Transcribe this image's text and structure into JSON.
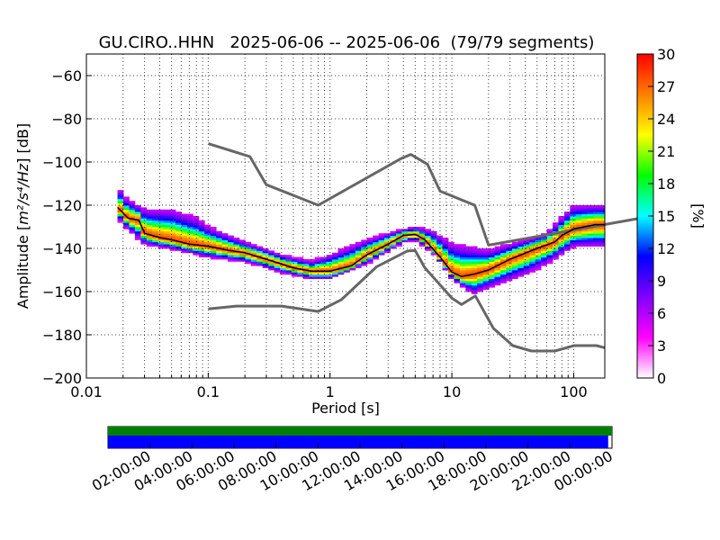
{
  "chart_data": [
    {
      "type": "heatmap",
      "title": "GU.CIRO..HHN   2025-06-06 -- 2025-06-06  (79/79 segments)",
      "xlabel": "Period [s]",
      "ylabel_prefix": "Amplitude [",
      "ylabel_math": "m²/s⁴/Hz",
      "ylabel_suffix": "] [dB]",
      "x_scale": "log",
      "xlim": [
        0.01,
        180
      ],
      "ylim": [
        -200,
        -50
      ],
      "x_tick_values": [
        0.01,
        0.1,
        1,
        10,
        100
      ],
      "x_tick_labels": [
        "0.01",
        "0.1",
        "1",
        "10",
        "100"
      ],
      "y_tick_values": [
        -60,
        -80,
        -100,
        -120,
        -140,
        -160,
        -180,
        -200
      ],
      "y_tick_labels": [
        "−60",
        "−80",
        "−100",
        "−120",
        "−140",
        "−160",
        "−180",
        "−200"
      ],
      "grid": true,
      "colorbar": {
        "label": "[%]",
        "range": [
          0,
          30
        ],
        "tick_labels": [
          "0",
          "3",
          "6",
          "9",
          "12",
          "15",
          "18",
          "21",
          "24",
          "27",
          "30"
        ],
        "colormap": [
          "#ffffff",
          "#ff00ff",
          "#8000ff",
          "#0000ff",
          "#00ffff",
          "#00ff00",
          "#ffff00",
          "#ff8000",
          "#ff0000"
        ]
      },
      "noise_models": [
        {
          "name": "high",
          "color": "#666666",
          "points": [
            [
              0.1,
              -91.5
            ],
            [
              0.22,
              -97.5
            ],
            [
              0.3,
              -110.5
            ],
            [
              0.8,
              -120
            ],
            [
              3.8,
              -98.5
            ],
            [
              4.6,
              -96.5
            ],
            [
              6.3,
              -101
            ],
            [
              8.0,
              -113.5
            ],
            [
              15.4,
              -120
            ],
            [
              20,
              -138.5
            ],
            [
              354,
              -126
            ]
          ]
        },
        {
          "name": "low",
          "color": "#666666",
          "points": [
            [
              0.1,
              -168
            ],
            [
              0.17,
              -166.7
            ],
            [
              0.4,
              -166.7
            ],
            [
              0.8,
              -169.2
            ],
            [
              1.24,
              -163.7
            ],
            [
              2.4,
              -148.6
            ],
            [
              4.3,
              -141.2
            ],
            [
              5.0,
              -141
            ],
            [
              6.0,
              -149
            ],
            [
              10,
              -163
            ],
            [
              12,
              -166
            ],
            [
              15.6,
              -162
            ],
            [
              21.9,
              -177
            ],
            [
              31.6,
              -185
            ],
            [
              45,
              -187.5
            ],
            [
              70,
              -187.5
            ],
            [
              101,
              -185
            ],
            [
              154,
              -185
            ],
            [
              180,
              -186
            ]
          ]
        }
      ],
      "mode_curve": {
        "color": "#000000",
        "points": [
          [
            0.018,
            -121
          ],
          [
            0.022,
            -126
          ],
          [
            0.027,
            -127
          ],
          [
            0.03,
            -133
          ],
          [
            0.04,
            -135
          ],
          [
            0.05,
            -136
          ],
          [
            0.07,
            -138
          ],
          [
            0.1,
            -139
          ],
          [
            0.15,
            -141
          ],
          [
            0.2,
            -142
          ],
          [
            0.3,
            -145
          ],
          [
            0.5,
            -149
          ],
          [
            0.7,
            -150.5
          ],
          [
            1,
            -150.5
          ],
          [
            1.5,
            -148
          ],
          [
            2,
            -143
          ],
          [
            3,
            -138
          ],
          [
            4,
            -134
          ],
          [
            5,
            -133.5
          ],
          [
            6,
            -136
          ],
          [
            8,
            -144
          ],
          [
            10,
            -151
          ],
          [
            12,
            -153
          ],
          [
            15,
            -152
          ],
          [
            20,
            -150
          ],
          [
            30,
            -145
          ],
          [
            50,
            -140
          ],
          [
            70,
            -137
          ],
          [
            80,
            -134
          ],
          [
            100,
            -131
          ],
          [
            150,
            -129
          ],
          [
            180,
            -129
          ]
        ]
      },
      "heatmap_envelope": {
        "upper": [
          [
            0.018,
            -110
          ],
          [
            0.02,
            -116
          ],
          [
            0.03,
            -122
          ],
          [
            0.05,
            -122
          ],
          [
            0.08,
            -126
          ],
          [
            0.1,
            -130
          ],
          [
            0.2,
            -137
          ],
          [
            0.4,
            -143
          ],
          [
            0.7,
            -146
          ],
          [
            1,
            -143
          ],
          [
            2,
            -136
          ],
          [
            4,
            -131
          ],
          [
            5,
            -130
          ],
          [
            7,
            -132
          ],
          [
            10,
            -138
          ],
          [
            20,
            -141
          ],
          [
            40,
            -136
          ],
          [
            60,
            -133
          ],
          [
            100,
            -120
          ],
          [
            180,
            -120
          ]
        ],
        "lower": [
          [
            0.018,
            -125
          ],
          [
            0.02,
            -129
          ],
          [
            0.03,
            -138
          ],
          [
            0.05,
            -140
          ],
          [
            0.1,
            -144
          ],
          [
            0.2,
            -146
          ],
          [
            0.4,
            -151
          ],
          [
            0.7,
            -154
          ],
          [
            1,
            -154
          ],
          [
            2,
            -147
          ],
          [
            4,
            -137
          ],
          [
            5,
            -136
          ],
          [
            7,
            -142
          ],
          [
            10,
            -154
          ],
          [
            15,
            -161
          ],
          [
            20,
            -158
          ],
          [
            40,
            -152
          ],
          [
            60,
            -147
          ],
          [
            100,
            -139
          ],
          [
            180,
            -139
          ]
        ]
      }
    },
    {
      "type": "timeline",
      "tick_labels": [
        "02:00:00",
        "04:00:00",
        "06:00:00",
        "08:00:00",
        "10:00:00",
        "12:00:00",
        "14:00:00",
        "16:00:00",
        "18:00:00",
        "20:00:00",
        "22:00:00",
        "00:00:00"
      ],
      "span_hours": 24,
      "data_available_fraction": 1.0,
      "segments_used_fraction": 0.9924,
      "colors": {
        "available": "#008000",
        "used": "#0000ff"
      }
    }
  ]
}
